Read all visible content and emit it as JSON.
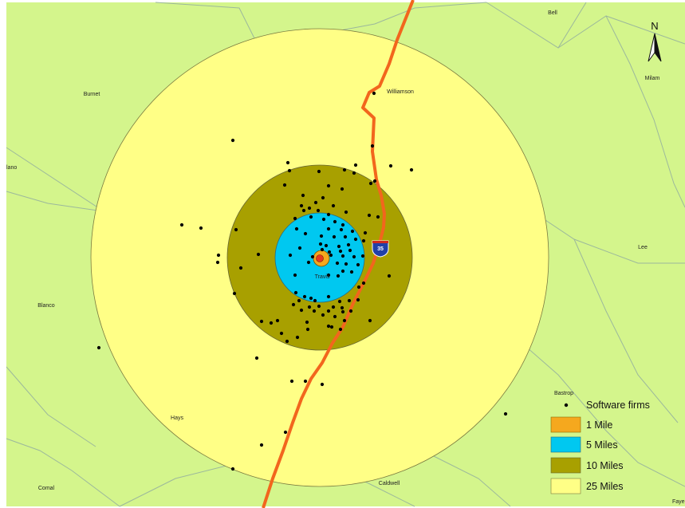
{
  "map": {
    "colors": {
      "land": "#d4f58c",
      "county_border": "#9cb89c",
      "highway": "#f2661d",
      "buffer_25": "#ffff86",
      "buffer_10": "#a8a000",
      "buffer_5": "#00c8f0",
      "buffer_1": "#f5a81e",
      "firm_dot": "#000000",
      "center_marker": "#e83a1e"
    },
    "counties": {
      "bell": "Bell",
      "milam": "Milam",
      "burnet": "Burnet",
      "williamson": "Williamson",
      "llano": "lano",
      "lee": "Lee",
      "travis": "Travis",
      "blanco": "Blanco",
      "bastrop": "Bastrop",
      "hays": "Hays",
      "caldwell": "Caldwell",
      "comal": "Comal",
      "fayette": "Faye"
    },
    "highway_shield": "35",
    "north_arrow": "N"
  },
  "legend": {
    "firms": "Software firms",
    "mile_1": "1 Mile",
    "mile_5": "5 Miles",
    "mile_10": "10 Miles",
    "mile_25": "25 Miles"
  }
}
